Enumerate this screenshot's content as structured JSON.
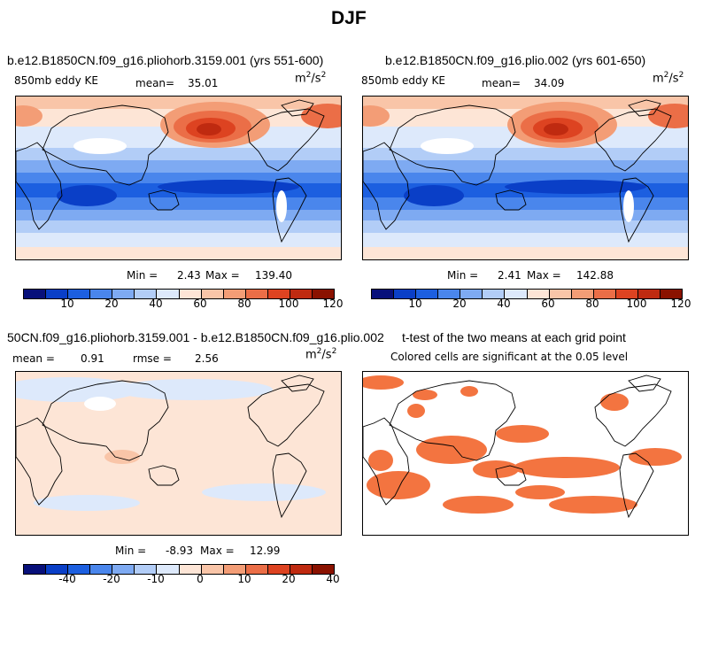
{
  "figure": {
    "season": "DJF"
  },
  "colors": {
    "positive_scale": [
      "#08107a",
      "#0a3fc7",
      "#1c5fe0",
      "#4a86ec",
      "#7eaaf2",
      "#b2cdf7",
      "#dde9fb",
      "#fde5d6",
      "#f9c5a8",
      "#f39d76",
      "#eb6e47",
      "#dd4321",
      "#bf2a10",
      "#8a1200"
    ],
    "diff_scale": [
      "#08107a",
      "#0a3fc7",
      "#1c5fe0",
      "#4a86ec",
      "#7eaaf2",
      "#b2cdf7",
      "#dde9fb",
      "#fde5d6",
      "#f9c5a8",
      "#f39d76",
      "#eb6e47",
      "#dd4321",
      "#bf2a10",
      "#8a1200"
    ],
    "significant": "#f37440"
  },
  "chart_data": [
    {
      "type": "heatmap",
      "title": "b.e12.B1850CN.f09_g16.pliohorb.3159.001 (yrs 551-600)",
      "variable": "850mb eddy KE",
      "mean_label": "mean=",
      "mean": "35.01",
      "units_base": "m",
      "units_exp1": "2",
      "units_slash": "/s",
      "units_exp2": "2",
      "min_label": "Min =",
      "min": "2.43",
      "max_label": "Max =",
      "max": "139.40",
      "colorbar_ticks": [
        "10",
        "20",
        "40",
        "60",
        "80",
        "100",
        "120"
      ]
    },
    {
      "type": "heatmap",
      "title": "b.e12.B1850CN.f09_g16.plio.002 (yrs 601-650)",
      "variable": "850mb eddy KE",
      "mean_label": "mean=",
      "mean": "34.09",
      "units_base": "m",
      "units_exp1": "2",
      "units_slash": "/s",
      "units_exp2": "2",
      "min_label": "Min =",
      "min": "2.41",
      "max_label": "Max =",
      "max": "142.88",
      "colorbar_ticks": [
        "10",
        "20",
        "40",
        "60",
        "80",
        "100",
        "120"
      ]
    },
    {
      "type": "heatmap",
      "title": "50CN.f09_g16.pliohorb.3159.001 - b.e12.B1850CN.f09_g16.plio.002",
      "mean_label": "mean =",
      "mean": "0.91",
      "rmse_label": "rmse =",
      "rmse": "2.56",
      "units_base": "m",
      "units_exp1": "2",
      "units_slash": "/s",
      "units_exp2": "2",
      "min_label": "Min =",
      "min": "-8.93",
      "max_label": "Max =",
      "max": "12.99",
      "colorbar_ticks": [
        "-40",
        "-20",
        "-10",
        "0",
        "10",
        "20",
        "40"
      ]
    },
    {
      "type": "heatmap",
      "title": "t-test of the two means at each grid point",
      "subtitle": "Colored cells are significant at the 0.05 level"
    }
  ]
}
